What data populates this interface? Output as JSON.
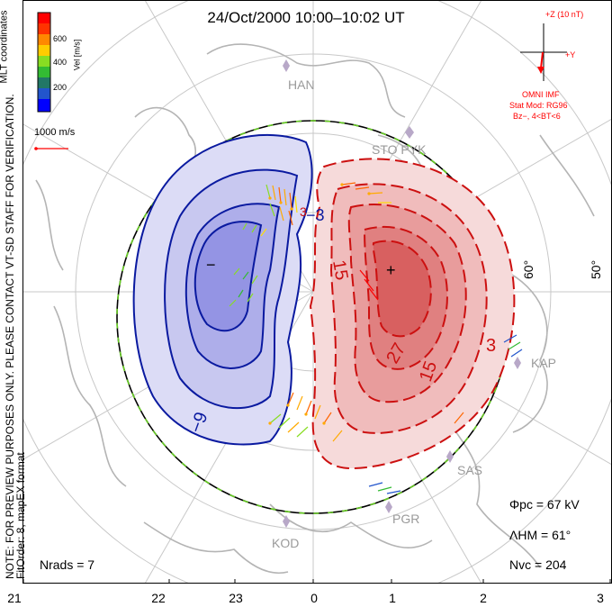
{
  "title": "24/Oct/2000 10:00–10:02 UT",
  "side_note_line1": "NOTE: FOR PREVIEW PURPOSES ONLY. PLEASE CONTACT VT-SD STAFF FOR VERIFICATION.",
  "side_note_line2": "FitOrder: 8, mapEX format",
  "mlt_coords": "MLT coordinates",
  "colorbar": {
    "unit": "Vel [m/s]",
    "ticks": [
      "600",
      "400",
      "200"
    ],
    "colors": [
      "#ff0000",
      "#ff6600",
      "#ffaa00",
      "#ffdd00",
      "#88dd22",
      "#33bb33",
      "#227755",
      "#2255cc",
      "#0000ff"
    ]
  },
  "velocity_scale": "1000 m/s",
  "imf": {
    "z_label": "+Z (10 nT)",
    "y_label": "+Y",
    "source": "OMNI IMF",
    "model_line1": "Stat Mod: RG96",
    "model_line2": "Bz−, 4<BT<6"
  },
  "stations": [
    "HAN",
    "STO PYK",
    "KAP",
    "SAS",
    "PGR",
    "KOD"
  ],
  "lat_labels": [
    "60°",
    "50°"
  ],
  "contour_labels": {
    "neg": [
      "−9",
      "−3"
    ],
    "pos": [
      "15",
      "27",
      "15",
      "3",
      "3"
    ],
    "min_mark": "−",
    "max_mark": "+"
  },
  "stats": {
    "phi_pc": "Φpc = 67 kV",
    "lambda_hm": "ΛHM = 61°",
    "n_vc": "Nvc = 204",
    "n_rads": "Nrads = 7"
  },
  "mlt_axis": [
    "21",
    "22",
    "23",
    "0",
    "1",
    "2",
    "3"
  ]
}
